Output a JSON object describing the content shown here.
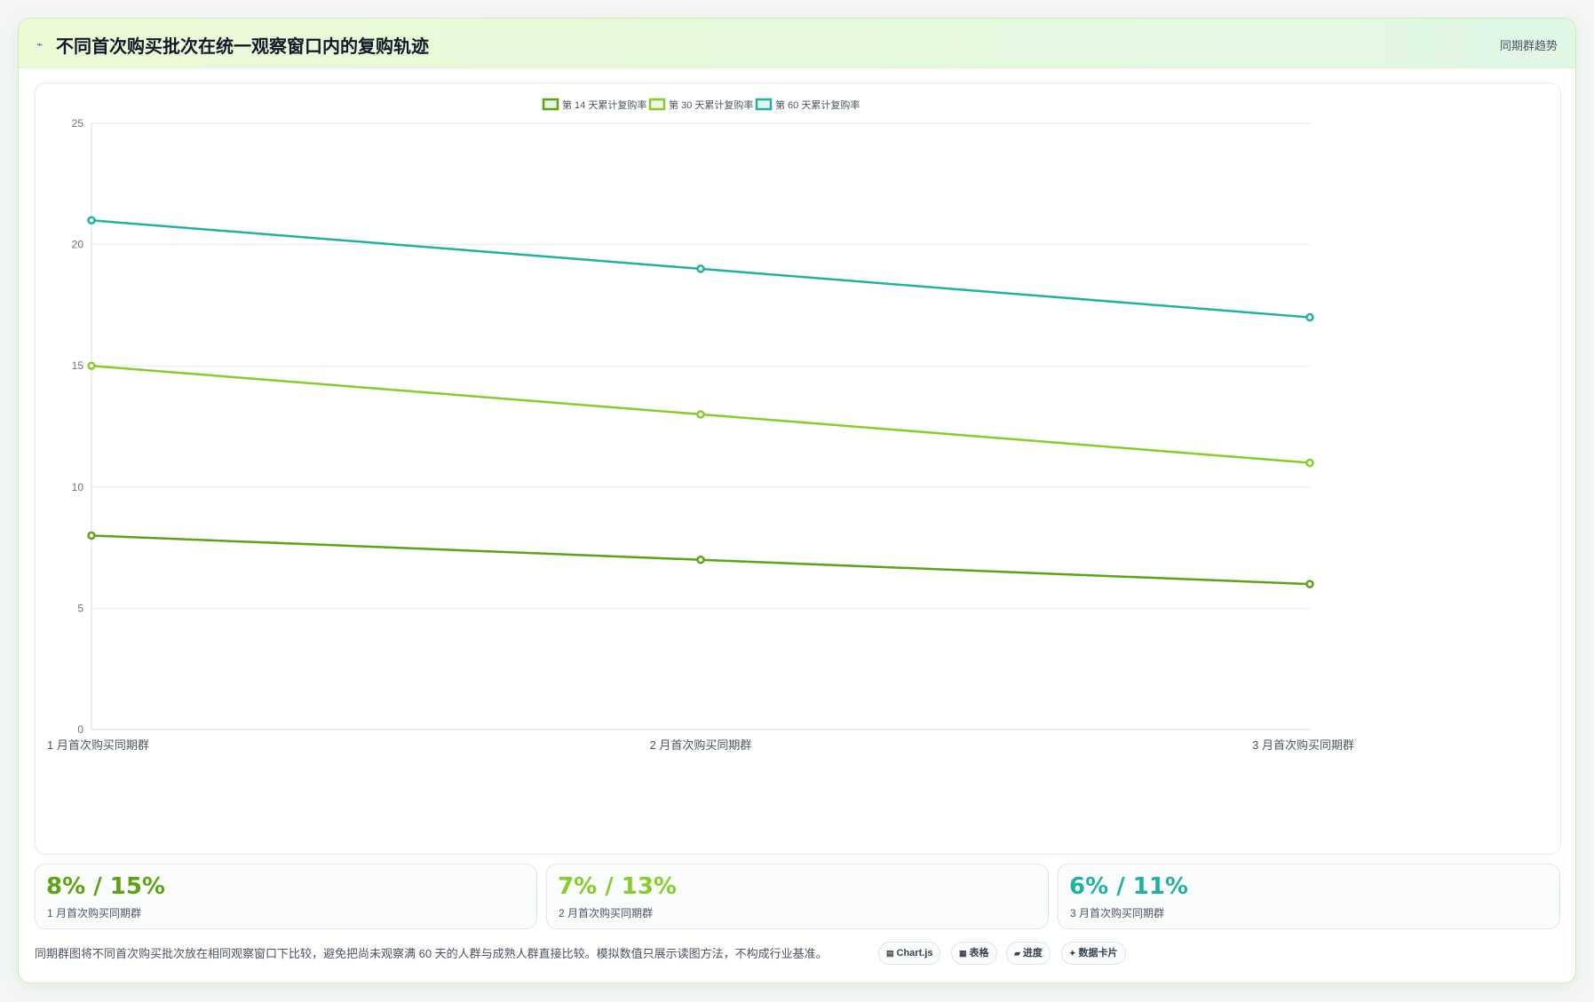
{
  "header": {
    "icon": "chart-line-icon",
    "title": "不同首次购买批次在统一观察窗口内的复购轨迹",
    "badge": "同期群趋势"
  },
  "chart_data": {
    "type": "line",
    "categories": [
      "1 月首次购买同期群",
      "2 月首次购买同期群",
      "3 月首次购买同期群"
    ],
    "series": [
      {
        "name": "第 14 天累计复购率",
        "values": [
          8,
          7,
          6
        ],
        "color": "#5ea314"
      },
      {
        "name": "第 30 天累计复购率",
        "values": [
          15,
          13,
          11
        ],
        "color": "#87cc2a"
      },
      {
        "name": "第 60 天累计复购率",
        "values": [
          21,
          19,
          17
        ],
        "color": "#1fb2a0"
      }
    ],
    "ylim": [
      0,
      25
    ],
    "yticks": [
      0,
      5,
      10,
      15,
      20,
      25
    ],
    "grid": true,
    "legend": "top-center",
    "xlabel": "",
    "ylabel": ""
  },
  "kpis": [
    {
      "value": "8% / 15%",
      "label": "1 月首次购买同期群",
      "color": "#5ea314"
    },
    {
      "value": "7% / 13%",
      "label": "2 月首次购买同期群",
      "color": "#87cc2a"
    },
    {
      "value": "6% / 11%",
      "label": "3 月首次购买同期群",
      "color": "#1fb2a0"
    }
  ],
  "footnote": "同期群图将不同首次购买批次放在相同观察窗口下比较，避免把尚未观察满 60 天的人群与成熟人群直接比较。模拟数值只展示读图方法，不构成行业基准。",
  "pills": [
    {
      "icon": "▤",
      "label": "Chart.js"
    },
    {
      "icon": "▦",
      "label": "表格"
    },
    {
      "icon": "▰",
      "label": "进度"
    },
    {
      "icon": "✦",
      "label": "数据卡片"
    }
  ]
}
